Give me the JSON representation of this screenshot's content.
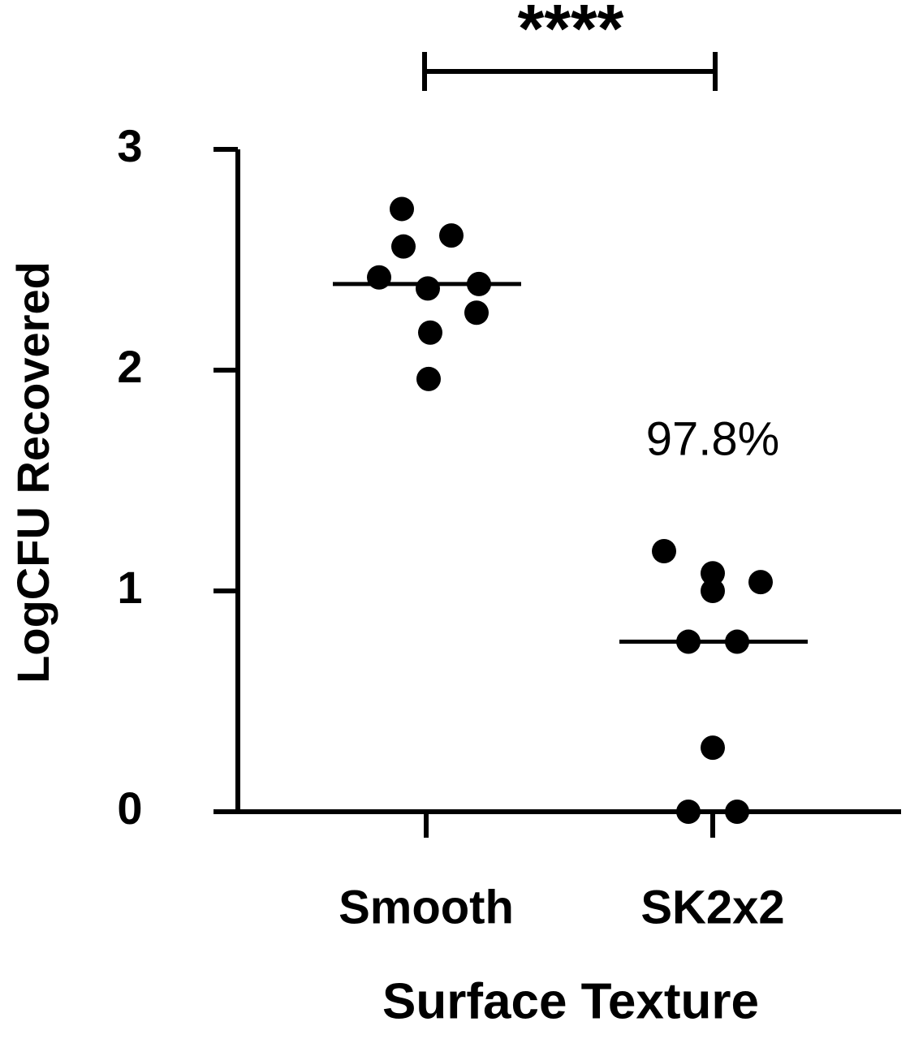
{
  "chart_data": {
    "type": "scatter",
    "x_label": "Surface Texture",
    "y_label": "LogCFU Recovered",
    "categories": [
      "Smooth",
      "SK2x2"
    ],
    "points": [
      [
        2.73,
        2.61,
        2.56,
        2.42,
        2.37,
        2.39,
        2.26,
        2.17,
        1.96
      ],
      [
        1.18,
        1.08,
        1.04,
        1.0,
        0.77,
        0.77,
        0.29,
        0,
        0
      ]
    ],
    "medians": [
      2.39,
      0.77
    ],
    "color": "#000000",
    "ylim": [
      0,
      3
    ],
    "yticks": [
      0,
      1,
      2,
      3
    ],
    "significance": "****",
    "annotation": "97.8%"
  }
}
